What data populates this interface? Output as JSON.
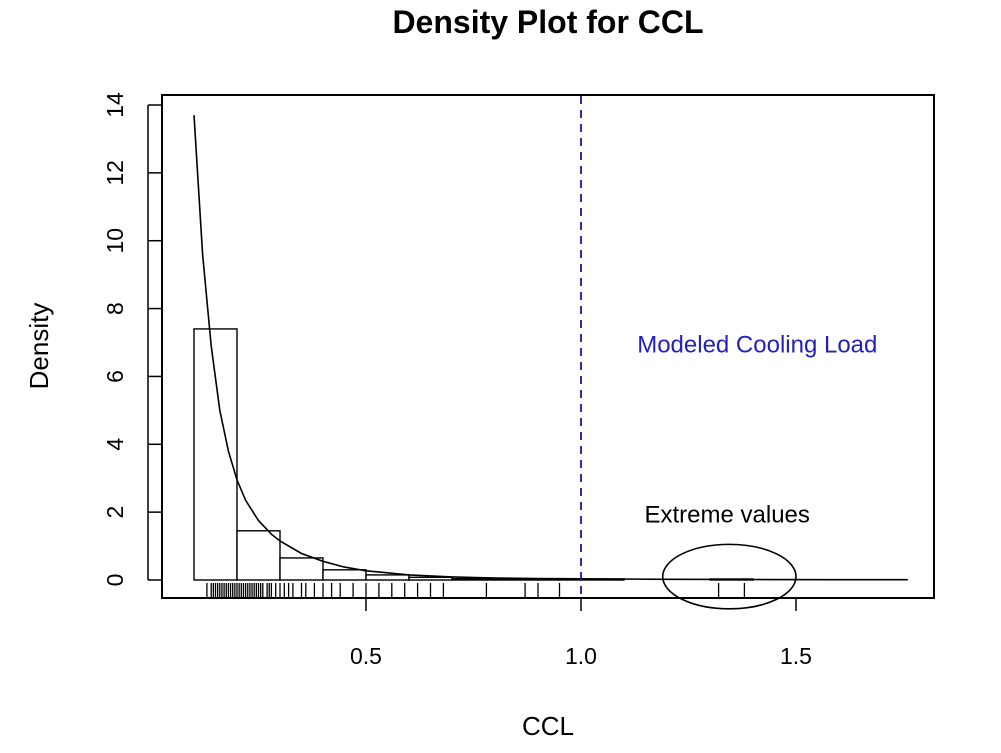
{
  "chart_data": {
    "type": "histogram_density",
    "title": "Density Plot for CCL",
    "xlabel": "CCL",
    "ylabel": "Density",
    "xlim": [
      0.08,
      1.8
    ],
    "ylim": [
      0,
      14
    ],
    "x_ticks": [
      0.5,
      1.0,
      1.5
    ],
    "x_tick_labels": [
      "0.5",
      "1.0",
      "1.5"
    ],
    "y_ticks": [
      0,
      2,
      4,
      6,
      8,
      10,
      12,
      14
    ],
    "y_tick_labels": [
      "0",
      "2",
      "4",
      "6",
      "8",
      "10",
      "12",
      "14"
    ],
    "histogram": {
      "bin_edges": [
        0.1,
        0.2,
        0.3,
        0.4,
        0.5,
        0.6,
        0.7,
        0.8,
        0.9,
        1.0,
        1.1,
        1.2,
        1.3,
        1.4
      ],
      "densities": [
        7.4,
        1.45,
        0.65,
        0.3,
        0.15,
        0.08,
        0.04,
        0.03,
        0.03,
        0.03,
        0.0,
        0.0,
        0.03
      ]
    },
    "density_curve": {
      "x": [
        0.1,
        0.12,
        0.14,
        0.16,
        0.18,
        0.2,
        0.22,
        0.25,
        0.28,
        0.3,
        0.35,
        0.4,
        0.45,
        0.5,
        0.6,
        0.7,
        0.8,
        0.9,
        1.0,
        1.2,
        1.4,
        1.6,
        1.76
      ],
      "y": [
        13.7,
        9.6,
        6.9,
        5.0,
        3.8,
        2.95,
        2.35,
        1.75,
        1.35,
        1.15,
        0.78,
        0.55,
        0.38,
        0.27,
        0.15,
        0.09,
        0.06,
        0.045,
        0.035,
        0.02,
        0.015,
        0.01,
        0.01
      ]
    },
    "rug": [
      0.13,
      0.14,
      0.145,
      0.15,
      0.155,
      0.16,
      0.165,
      0.17,
      0.175,
      0.18,
      0.185,
      0.19,
      0.195,
      0.2,
      0.205,
      0.21,
      0.215,
      0.22,
      0.225,
      0.23,
      0.235,
      0.24,
      0.245,
      0.25,
      0.255,
      0.26,
      0.27,
      0.275,
      0.28,
      0.29,
      0.3,
      0.31,
      0.32,
      0.33,
      0.35,
      0.36,
      0.38,
      0.4,
      0.42,
      0.44,
      0.47,
      0.5,
      0.53,
      0.56,
      0.59,
      0.62,
      0.65,
      0.68,
      0.78,
      0.87,
      0.9,
      0.95,
      1.32,
      1.38
    ],
    "reference_line": {
      "x": 1.0,
      "style": "dashed",
      "color": "#1a1a8c"
    },
    "annotations": [
      {
        "text": "Modeled Cooling Load",
        "x": 1.41,
        "y": 6.7,
        "color": "#2222bb"
      },
      {
        "text": "Extreme values",
        "x": 1.34,
        "y": 1.7,
        "color": "#000000"
      }
    ],
    "extreme_ellipse": {
      "cx": 1.345,
      "cy": 0.1,
      "rx": 0.155,
      "ry": 0.95
    },
    "colors": {
      "hist_fill": "#ffffff",
      "hist_stroke": "#000000",
      "curve": "#000000",
      "reference": "#1a1a8c",
      "annotation_blue": "#2222bb"
    }
  }
}
